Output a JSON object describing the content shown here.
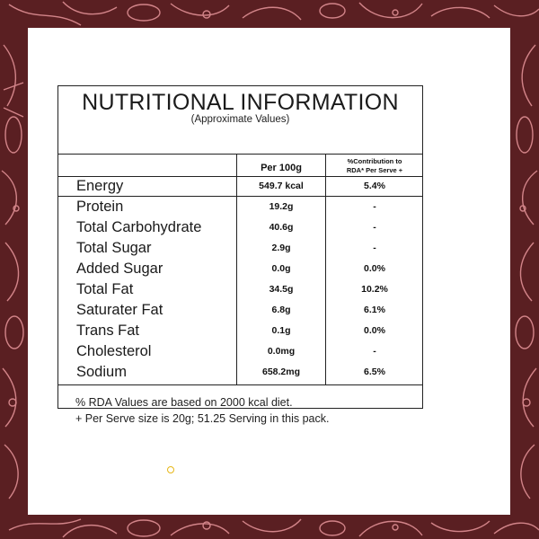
{
  "panel": {
    "title": "NUTRITIONAL INFORMATION",
    "subtitle": "(Approximate Values)"
  },
  "columns": {
    "per100": "Per 100g",
    "rda_line1": "%Contribution to",
    "rda_line2": "RDA* Per Serve +"
  },
  "rows": [
    {
      "nutrient": "Energy",
      "per100": "549.7 kcal",
      "rda": "5.4%"
    },
    {
      "nutrient": "Protein",
      "per100": "19.2g",
      "rda": "-"
    },
    {
      "nutrient": "Total Carbohydrate",
      "per100": "40.6g",
      "rda": "-"
    },
    {
      "nutrient": "Total Sugar",
      "per100": "2.9g",
      "rda": "-"
    },
    {
      "nutrient": "Added Sugar",
      "per100": "0.0g",
      "rda": "0.0%"
    },
    {
      "nutrient": "Total Fat",
      "per100": "34.5g",
      "rda": "10.2%"
    },
    {
      "nutrient": "Saturater Fat",
      "per100": "6.8g",
      "rda": "6.1%"
    },
    {
      "nutrient": "Trans Fat",
      "per100": "0.1g",
      "rda": "0.0%"
    },
    {
      "nutrient": "Cholesterol",
      "per100": "0.0mg",
      "rda": "-"
    },
    {
      "nutrient": "Sodium",
      "per100": "658.2mg",
      "rda": "6.5%"
    }
  ],
  "footnotes": {
    "line1": "% RDA Values are based on 2000 kcal diet.",
    "line2": "+ Per Serve size is 20g; 51.25 Serving in this pack."
  },
  "colors": {
    "background": "#5a1f22",
    "illustration": "#e8969b",
    "card": "#ffffff",
    "accent_dot": "#e7b718"
  }
}
